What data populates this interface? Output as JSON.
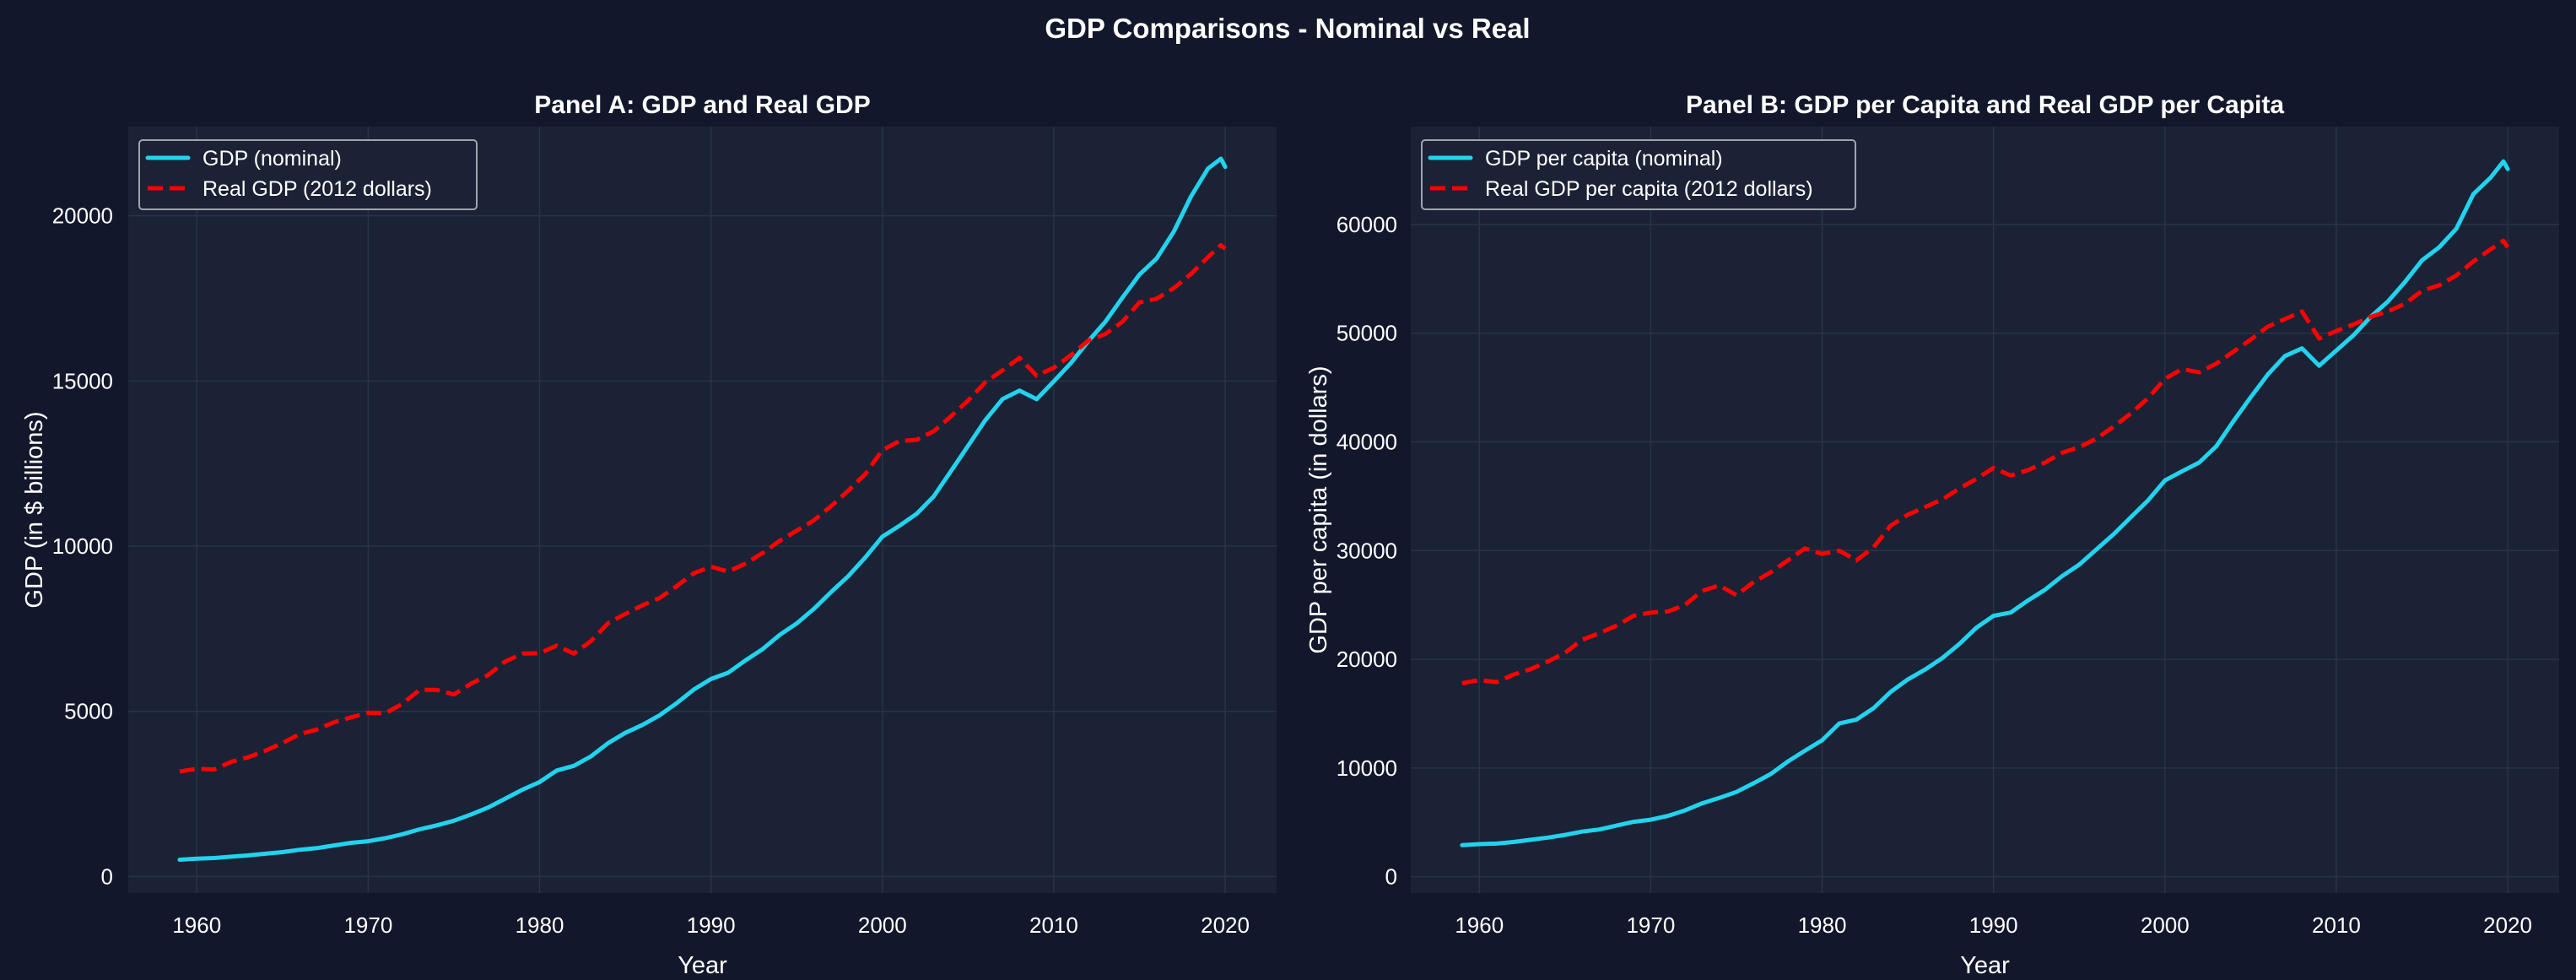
{
  "figure": {
    "title": "GDP Comparisons - Nominal vs Real",
    "background": "#12172b",
    "axes_background": "#1b2235",
    "grid_color": "#2a3346"
  },
  "chart_data": [
    {
      "type": "line",
      "title": "Panel A: GDP and Real GDP",
      "xlabel": "Year",
      "ylabel": "GDP (in $ billions)",
      "xlim": [
        1956,
        2023
      ],
      "ylim": [
        -500,
        22700
      ],
      "xticks": [
        1960,
        1970,
        1980,
        1990,
        2000,
        2010,
        2020
      ],
      "xtick_labels": [
        "1960",
        "1970",
        "1980",
        "1990",
        "2000",
        "2010",
        "2020"
      ],
      "yticks": [
        0,
        5000,
        10000,
        15000,
        20000
      ],
      "ytick_labels": [
        "0",
        "5000",
        "10000",
        "15000",
        "20000"
      ],
      "grid": true,
      "legend_position": "upper-left",
      "x": [
        1959,
        1960,
        1961,
        1962,
        1963,
        1964,
        1965,
        1966,
        1967,
        1968,
        1969,
        1970,
        1971,
        1972,
        1973,
        1974,
        1975,
        1976,
        1977,
        1978,
        1979,
        1980,
        1981,
        1982,
        1983,
        1984,
        1985,
        1986,
        1987,
        1988,
        1989,
        1990,
        1991,
        1992,
        1993,
        1994,
        1995,
        1996,
        1997,
        1998,
        1999,
        2000,
        2001,
        2002,
        2003,
        2004,
        2005,
        2006,
        2007,
        2008,
        2009,
        2010,
        2011,
        2012,
        2013,
        2014,
        2015,
        2016,
        2017,
        2018,
        2019,
        2019.75,
        2020
      ],
      "series": [
        {
          "name": "GDP (nominal)",
          "color": "#22d3ee",
          "style": "solid",
          "values": [
            510,
            540,
            560,
            600,
            640,
            690,
            740,
            810,
            860,
            940,
            1020,
            1070,
            1160,
            1280,
            1430,
            1550,
            1690,
            1880,
            2090,
            2360,
            2630,
            2860,
            3210,
            3350,
            3640,
            4040,
            4350,
            4590,
            4880,
            5250,
            5660,
            5980,
            6170,
            6540,
            6880,
            7310,
            7660,
            8100,
            8610,
            9090,
            9660,
            10290,
            10620,
            10980,
            11510,
            12270,
            13040,
            13810,
            14450,
            14710,
            14450,
            14990,
            15540,
            16200,
            16790,
            17520,
            18220,
            18710,
            19520,
            20580,
            21430,
            21730,
            21480
          ]
        },
        {
          "name": "Real GDP (2012 dollars)",
          "color": "#ff0000",
          "style": "dashed",
          "values": [
            3180,
            3260,
            3240,
            3470,
            3610,
            3810,
            4040,
            4310,
            4450,
            4670,
            4820,
            4960,
            4940,
            5230,
            5650,
            5650,
            5510,
            5840,
            6100,
            6510,
            6750,
            6760,
            6990,
            6750,
            7130,
            7670,
            7950,
            8210,
            8430,
            8790,
            9180,
            9380,
            9230,
            9470,
            9790,
            10160,
            10470,
            10780,
            11210,
            11680,
            12180,
            12910,
            13180,
            13220,
            13480,
            13930,
            14410,
            14960,
            15320,
            15700,
            15160,
            15400,
            15780,
            16220,
            16420,
            16790,
            17380,
            17490,
            17810,
            18240,
            18750,
            19110,
            19000
          ]
        }
      ]
    },
    {
      "type": "line",
      "title": "Panel B: GDP per Capita and Real GDP per Capita",
      "xlabel": "Year",
      "ylabel": "GDP per capita (in dollars)",
      "xlim": [
        1956,
        2023
      ],
      "ylim": [
        -1500,
        69000
      ],
      "xticks": [
        1960,
        1970,
        1980,
        1990,
        2000,
        2010,
        2020
      ],
      "xtick_labels": [
        "1960",
        "1970",
        "1980",
        "1990",
        "2000",
        "2010",
        "2020"
      ],
      "yticks": [
        0,
        10000,
        20000,
        30000,
        40000,
        50000,
        60000
      ],
      "ytick_labels": [
        "0",
        "10000",
        "20000",
        "30000",
        "40000",
        "50000",
        "60000"
      ],
      "grid": true,
      "legend_position": "upper-left",
      "x": [
        1959,
        1960,
        1961,
        1962,
        1963,
        1964,
        1965,
        1966,
        1967,
        1968,
        1969,
        1970,
        1971,
        1972,
        1973,
        1974,
        1975,
        1976,
        1977,
        1978,
        1979,
        1980,
        1981,
        1982,
        1983,
        1984,
        1985,
        1986,
        1987,
        1988,
        1989,
        1990,
        1991,
        1992,
        1993,
        1994,
        1995,
        1996,
        1997,
        1998,
        1999,
        2000,
        2001,
        2002,
        2003,
        2004,
        2005,
        2006,
        2007,
        2008,
        2009,
        2010,
        2011,
        2012,
        2013,
        2014,
        2015,
        2016,
        2017,
        2018,
        2019,
        2019.75,
        2020
      ],
      "series": [
        {
          "name": "GDP per capita (nominal)",
          "color": "#22d3ee",
          "style": "solid",
          "values": [
            2900,
            3000,
            3050,
            3200,
            3400,
            3600,
            3850,
            4150,
            4350,
            4700,
            5050,
            5250,
            5600,
            6100,
            6750,
            7250,
            7800,
            8600,
            9450,
            10600,
            11600,
            12550,
            14100,
            14450,
            15500,
            17000,
            18150,
            19050,
            20100,
            21400,
            22900,
            24000,
            24300,
            25400,
            26400,
            27650,
            28700,
            30100,
            31500,
            33050,
            34600,
            36450,
            37300,
            38100,
            39600,
            41900,
            44100,
            46200,
            47900,
            48600,
            47000,
            48400,
            49800,
            51500,
            52900,
            54700,
            56700,
            57900,
            59600,
            62800,
            64300,
            65800,
            65100
          ]
        },
        {
          "name": "Real GDP per capita (2012 dollars)",
          "color": "#ff0000",
          "style": "dashed",
          "values": [
            17800,
            18100,
            17900,
            18600,
            19100,
            19800,
            20600,
            21800,
            22400,
            23100,
            24000,
            24300,
            24400,
            25000,
            26300,
            26800,
            25900,
            27100,
            28000,
            29100,
            30200,
            29700,
            30000,
            29100,
            30300,
            32300,
            33300,
            34000,
            34700,
            35700,
            36600,
            37600,
            36900,
            37400,
            38100,
            39000,
            39500,
            40300,
            41400,
            42600,
            44000,
            45800,
            46700,
            46400,
            47200,
            48300,
            49400,
            50600,
            51300,
            52000,
            49500,
            50200,
            50800,
            51500,
            52000,
            52700,
            53900,
            54400,
            55300,
            56600,
            57700,
            58500,
            57900
          ]
        }
      ]
    }
  ]
}
